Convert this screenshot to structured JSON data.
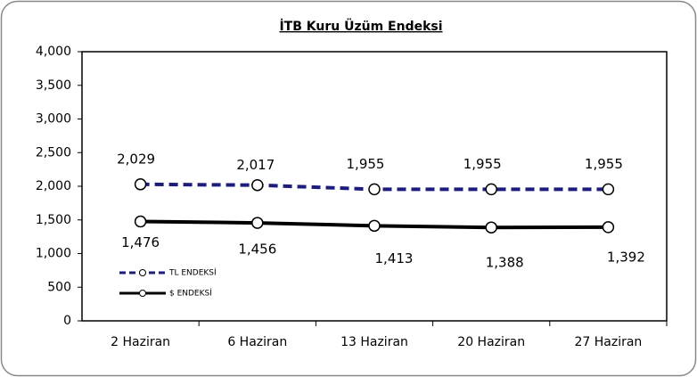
{
  "chart_data": {
    "type": "line",
    "title": "İTB Kuru Üzüm Endeksi",
    "categories": [
      "2 Haziran",
      "6 Haziran",
      "13 Haziran",
      "20 Haziran",
      "27 Haziran"
    ],
    "series": [
      {
        "name": "TL ENDEKSİ",
        "color": "#1c1c7a",
        "dash": true,
        "values": [
          2029,
          2017,
          1955,
          1955,
          1955
        ],
        "value_labels": [
          "2,029",
          "2,017",
          "1,955",
          "1,955",
          "1,955"
        ]
      },
      {
        "name": "$ ENDEKSİ",
        "color": "#000000",
        "dash": false,
        "values": [
          1476,
          1456,
          1413,
          1388,
          1392
        ],
        "value_labels": [
          "1,476",
          "1,456",
          "1,413",
          "1,388",
          "1,392"
        ]
      }
    ],
    "ylim": [
      0,
      4000
    ],
    "yticks": [
      0,
      500,
      {
        "value": 1000,
        "label": "1,000"
      },
      {
        "value": 1500,
        "label": "1,500"
      },
      {
        "value": 2000,
        "label": "2,000"
      },
      {
        "value": 2500,
        "label": "2,500"
      },
      {
        "value": 3000,
        "label": "3,000"
      },
      {
        "value": 3500,
        "label": "3,500"
      },
      {
        "value": 4000,
        "label": "4,000"
      }
    ],
    "grid": false,
    "legend": "lower left"
  }
}
